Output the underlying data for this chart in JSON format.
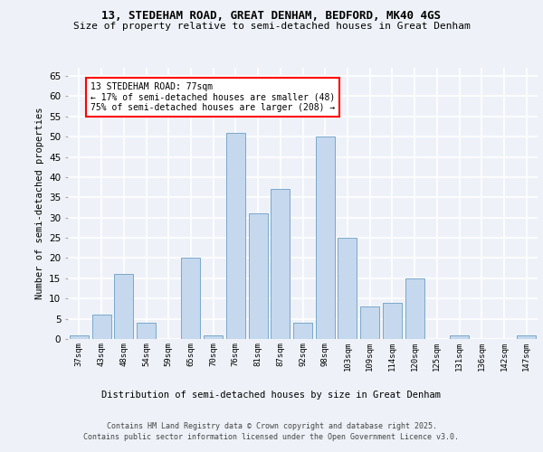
{
  "title1": "13, STEDEHAM ROAD, GREAT DENHAM, BEDFORD, MK40 4GS",
  "title2": "Size of property relative to semi-detached houses in Great Denham",
  "xlabel": "Distribution of semi-detached houses by size in Great Denham",
  "ylabel": "Number of semi-detached properties",
  "categories": [
    "37sqm",
    "43sqm",
    "48sqm",
    "54sqm",
    "59sqm",
    "65sqm",
    "70sqm",
    "76sqm",
    "81sqm",
    "87sqm",
    "92sqm",
    "98sqm",
    "103sqm",
    "109sqm",
    "114sqm",
    "120sqm",
    "125sqm",
    "131sqm",
    "136sqm",
    "142sqm",
    "147sqm"
  ],
  "values": [
    1,
    6,
    16,
    4,
    0,
    20,
    1,
    51,
    31,
    37,
    4,
    50,
    25,
    8,
    9,
    15,
    0,
    1,
    0,
    0,
    1
  ],
  "bar_color": "#c5d8ed",
  "bar_edge_color": "#7aa8cc",
  "highlight_index": 7,
  "annotation_box_text": "13 STEDEHAM ROAD: 77sqm\n← 17% of semi-detached houses are smaller (48)\n75% of semi-detached houses are larger (208) →",
  "ylim": [
    0,
    67
  ],
  "yticks": [
    0,
    5,
    10,
    15,
    20,
    25,
    30,
    35,
    40,
    45,
    50,
    55,
    60,
    65
  ],
  "background_color": "#eef2f8",
  "grid_color": "#ffffff",
  "footer_line1": "Contains HM Land Registry data © Crown copyright and database right 2025.",
  "footer_line2": "Contains public sector information licensed under the Open Government Licence v3.0."
}
